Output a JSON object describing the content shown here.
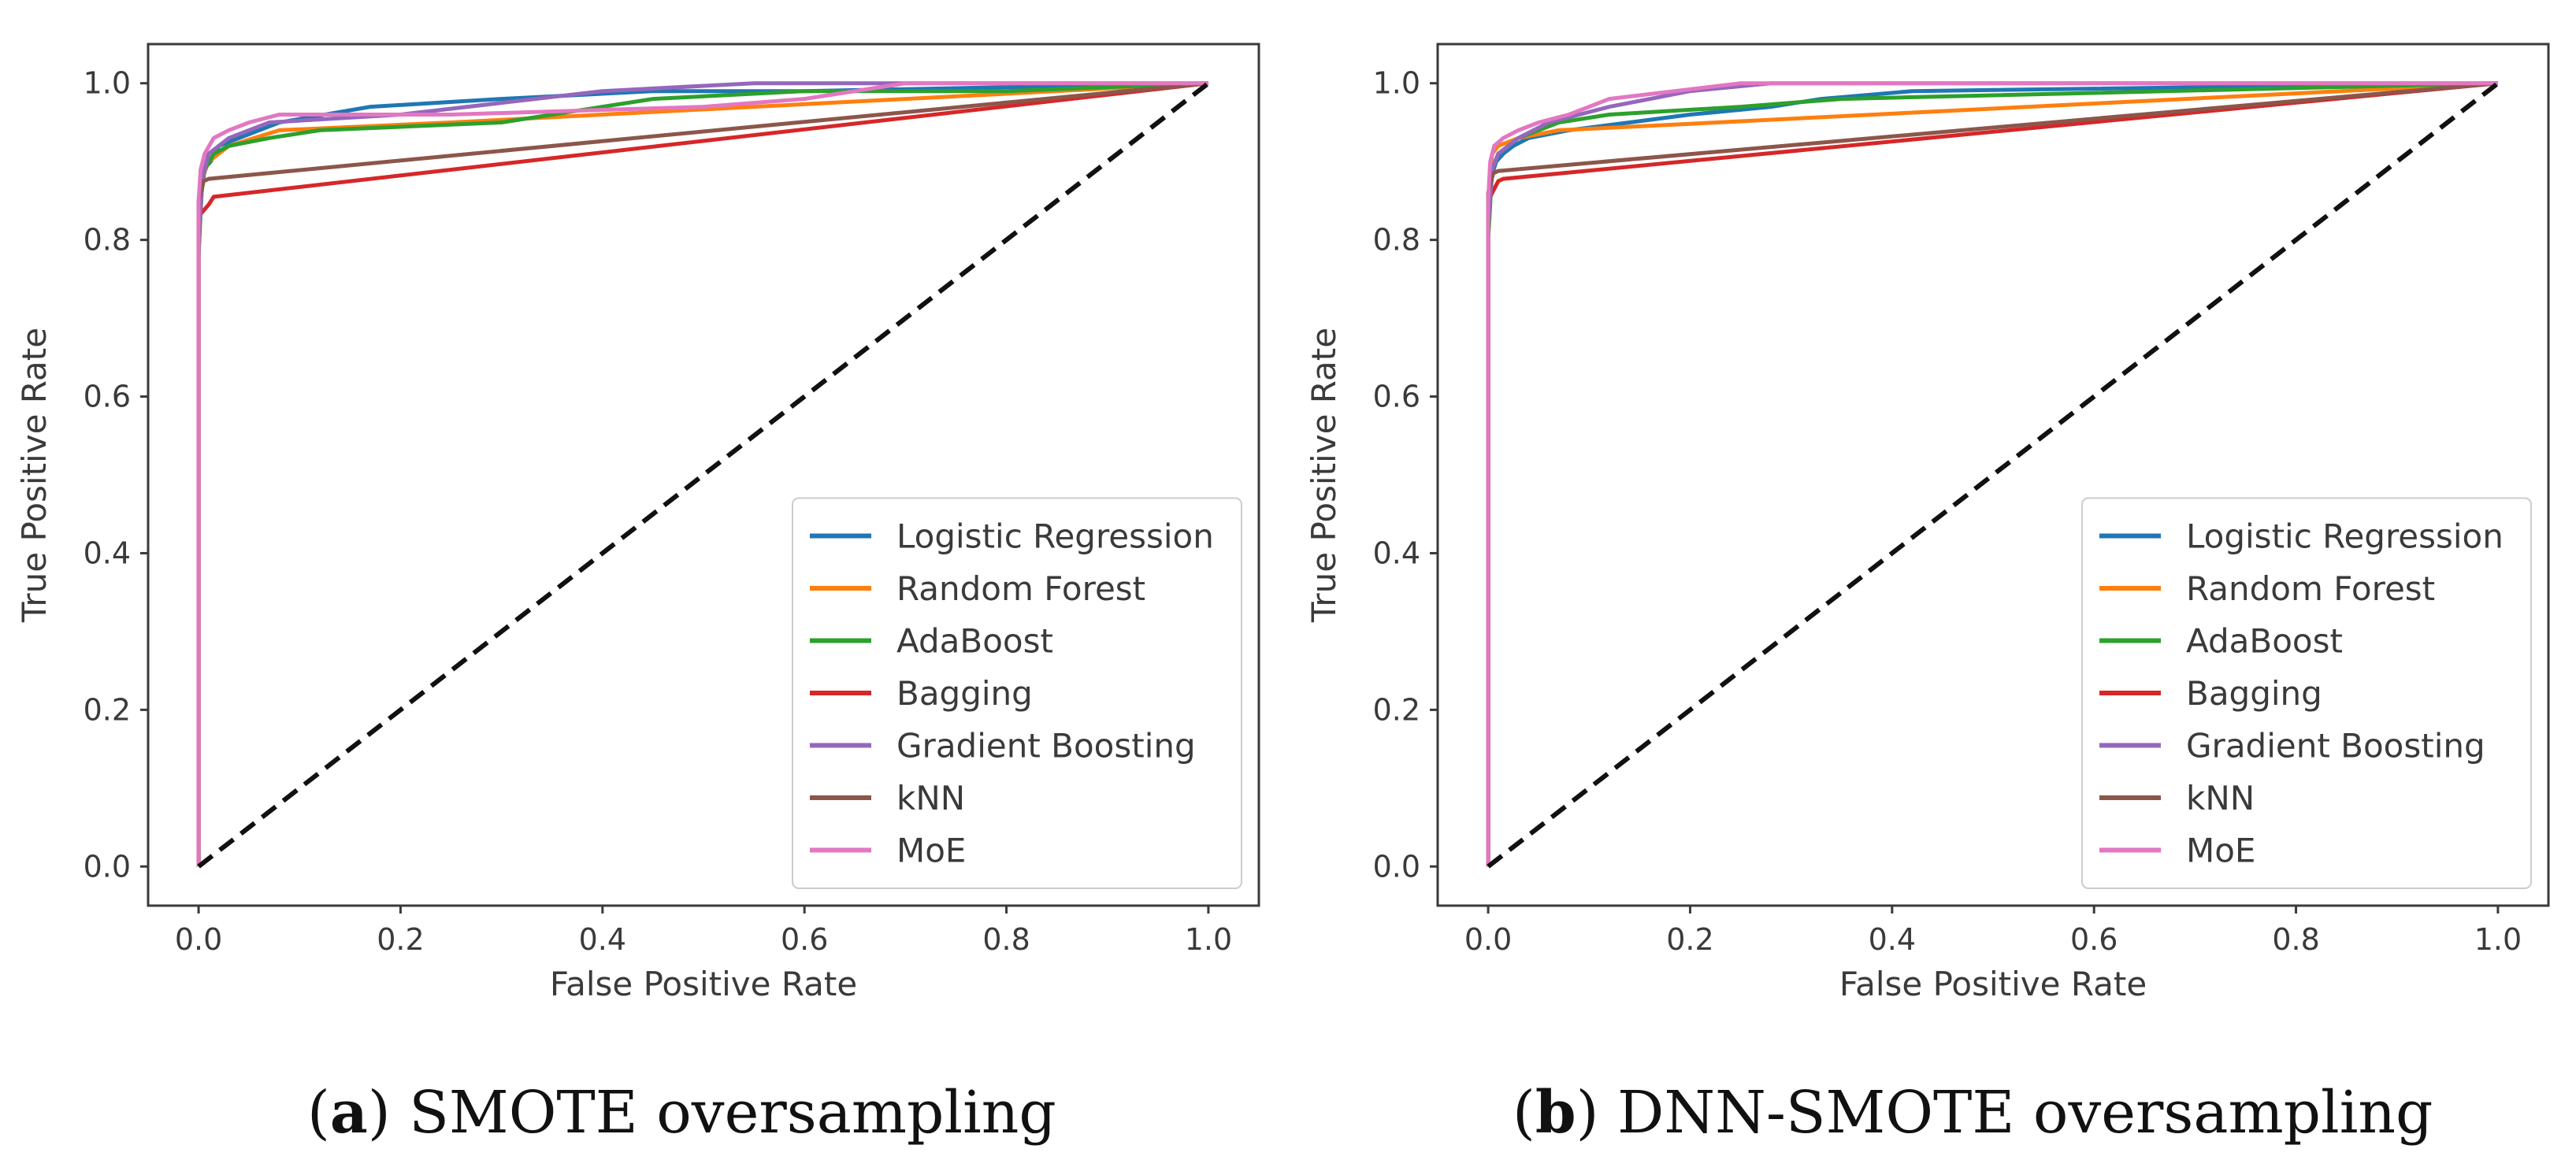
{
  "chart_data": [
    {
      "type": "line",
      "caption_letter": "a",
      "caption_text": " SMOTE oversampling",
      "xlabel": "False Positive Rate",
      "ylabel": "True Positive Rate",
      "xlim": [
        -0.05,
        1.05
      ],
      "ylim": [
        -0.05,
        1.05
      ],
      "xticks": [
        "0.0",
        "0.2",
        "0.4",
        "0.6",
        "0.8",
        "1.0"
      ],
      "yticks": [
        "0.0",
        "0.2",
        "0.4",
        "0.6",
        "0.8",
        "1.0"
      ],
      "legend_position": "lower-right",
      "diagonal": {
        "style": "dashed",
        "color": "#111111",
        "points": [
          [
            0,
            0
          ],
          [
            1,
            1
          ]
        ]
      },
      "series": [
        {
          "name": "Logistic Regression",
          "color": "#1f77b4",
          "points": [
            [
              0,
              0
            ],
            [
              0,
              0.78
            ],
            [
              0.002,
              0.86
            ],
            [
              0.005,
              0.89
            ],
            [
              0.012,
              0.9
            ],
            [
              0.02,
              0.92
            ],
            [
              0.04,
              0.93
            ],
            [
              0.08,
              0.95
            ],
            [
              0.17,
              0.97
            ],
            [
              0.3,
              0.98
            ],
            [
              0.45,
              0.99
            ],
            [
              0.6,
              0.99
            ],
            [
              1,
              1
            ]
          ]
        },
        {
          "name": "Random Forest",
          "color": "#ff7f0e",
          "points": [
            [
              0,
              0
            ],
            [
              0,
              0.8
            ],
            [
              0.004,
              0.88
            ],
            [
              0.01,
              0.9
            ],
            [
              0.03,
              0.92
            ],
            [
              0.08,
              0.94
            ],
            [
              0.25,
              0.95
            ],
            [
              1,
              1
            ]
          ]
        },
        {
          "name": "AdaBoost",
          "color": "#2ca02c",
          "points": [
            [
              0,
              0
            ],
            [
              0,
              0.78
            ],
            [
              0.003,
              0.86
            ],
            [
              0.006,
              0.89
            ],
            [
              0.015,
              0.91
            ],
            [
              0.03,
              0.92
            ],
            [
              0.07,
              0.93
            ],
            [
              0.12,
              0.94
            ],
            [
              0.3,
              0.95
            ],
            [
              0.45,
              0.98
            ],
            [
              0.6,
              0.99
            ],
            [
              0.8,
              0.99
            ],
            [
              1,
              1
            ]
          ]
        },
        {
          "name": "Bagging",
          "color": "#d62728",
          "points": [
            [
              0,
              0
            ],
            [
              0,
              0.83
            ],
            [
              0.01,
              0.845
            ],
            [
              0.015,
              0.855
            ],
            [
              1,
              1
            ]
          ]
        },
        {
          "name": "Gradient Boosting",
          "color": "#9467bd",
          "points": [
            [
              0,
              0
            ],
            [
              0,
              0.8
            ],
            [
              0.004,
              0.88
            ],
            [
              0.01,
              0.91
            ],
            [
              0.03,
              0.93
            ],
            [
              0.07,
              0.95
            ],
            [
              0.2,
              0.96
            ],
            [
              0.4,
              0.99
            ],
            [
              0.55,
              1.0
            ],
            [
              0.82,
              1.0
            ],
            [
              1,
              1
            ]
          ]
        },
        {
          "name": "kNN",
          "color": "#8c564b",
          "points": [
            [
              0,
              0
            ],
            [
              0,
              0.85
            ],
            [
              0.005,
              0.875
            ],
            [
              0.01,
              0.878
            ],
            [
              1,
              1
            ]
          ]
        },
        {
          "name": "MoE",
          "color": "#e377c2",
          "points": [
            [
              0,
              0
            ],
            [
              0,
              0.85
            ],
            [
              0.002,
              0.89
            ],
            [
              0.006,
              0.91
            ],
            [
              0.015,
              0.93
            ],
            [
              0.03,
              0.94
            ],
            [
              0.05,
              0.95
            ],
            [
              0.08,
              0.96
            ],
            [
              0.25,
              0.96
            ],
            [
              0.5,
              0.97
            ],
            [
              0.6,
              0.98
            ],
            [
              0.7,
              1.0
            ],
            [
              1,
              1
            ]
          ]
        }
      ]
    },
    {
      "type": "line",
      "caption_letter": "b",
      "caption_text": " DNN-SMOTE oversampling",
      "xlabel": "False Positive Rate",
      "ylabel": "True Positive Rate",
      "xlim": [
        -0.05,
        1.05
      ],
      "ylim": [
        -0.05,
        1.05
      ],
      "xticks": [
        "0.0",
        "0.2",
        "0.4",
        "0.6",
        "0.8",
        "1.0"
      ],
      "yticks": [
        "0.0",
        "0.2",
        "0.4",
        "0.6",
        "0.8",
        "1.0"
      ],
      "legend_position": "lower-right",
      "diagonal": {
        "style": "dashed",
        "color": "#111111",
        "points": [
          [
            0,
            0
          ],
          [
            1,
            1
          ]
        ]
      },
      "series": [
        {
          "name": "Logistic Regression",
          "color": "#1f77b4",
          "points": [
            [
              0,
              0
            ],
            [
              0,
              0.82
            ],
            [
              0.003,
              0.88
            ],
            [
              0.008,
              0.9
            ],
            [
              0.015,
              0.91
            ],
            [
              0.025,
              0.92
            ],
            [
              0.04,
              0.93
            ],
            [
              0.08,
              0.94
            ],
            [
              0.14,
              0.95
            ],
            [
              0.2,
              0.96
            ],
            [
              0.28,
              0.97
            ],
            [
              0.33,
              0.98
            ],
            [
              0.42,
              0.99
            ],
            [
              1,
              1
            ]
          ]
        },
        {
          "name": "Random Forest",
          "color": "#ff7f0e",
          "points": [
            [
              0,
              0
            ],
            [
              0,
              0.85
            ],
            [
              0.004,
              0.91
            ],
            [
              0.01,
              0.92
            ],
            [
              0.03,
              0.93
            ],
            [
              0.07,
              0.94
            ],
            [
              0.15,
              0.945
            ],
            [
              1,
              1
            ]
          ]
        },
        {
          "name": "AdaBoost",
          "color": "#2ca02c",
          "points": [
            [
              0,
              0
            ],
            [
              0,
              0.8
            ],
            [
              0.004,
              0.89
            ],
            [
              0.01,
              0.91
            ],
            [
              0.03,
              0.93
            ],
            [
              0.07,
              0.95
            ],
            [
              0.12,
              0.96
            ],
            [
              0.25,
              0.97
            ],
            [
              0.35,
              0.98
            ],
            [
              1,
              1
            ]
          ]
        },
        {
          "name": "Bagging",
          "color": "#d62728",
          "points": [
            [
              0,
              0
            ],
            [
              0,
              0.85
            ],
            [
              0.01,
              0.875
            ],
            [
              0.015,
              0.878
            ],
            [
              1,
              1
            ]
          ]
        },
        {
          "name": "Gradient Boosting",
          "color": "#9467bd",
          "points": [
            [
              0,
              0
            ],
            [
              0,
              0.82
            ],
            [
              0.004,
              0.89
            ],
            [
              0.01,
              0.91
            ],
            [
              0.03,
              0.93
            ],
            [
              0.06,
              0.95
            ],
            [
              0.12,
              0.97
            ],
            [
              0.2,
              0.99
            ],
            [
              0.28,
              1.0
            ],
            [
              1,
              1
            ]
          ]
        },
        {
          "name": "kNN",
          "color": "#8c564b",
          "points": [
            [
              0,
              0
            ],
            [
              0,
              0.86
            ],
            [
              0.005,
              0.885
            ],
            [
              0.01,
              0.888
            ],
            [
              1,
              1
            ]
          ]
        },
        {
          "name": "MoE",
          "color": "#e377c2",
          "points": [
            [
              0,
              0
            ],
            [
              0,
              0.85
            ],
            [
              0.002,
              0.9
            ],
            [
              0.006,
              0.92
            ],
            [
              0.015,
              0.93
            ],
            [
              0.03,
              0.94
            ],
            [
              0.05,
              0.95
            ],
            [
              0.08,
              0.96
            ],
            [
              0.12,
              0.98
            ],
            [
              0.25,
              1.0
            ],
            [
              1,
              1
            ]
          ]
        }
      ]
    }
  ]
}
